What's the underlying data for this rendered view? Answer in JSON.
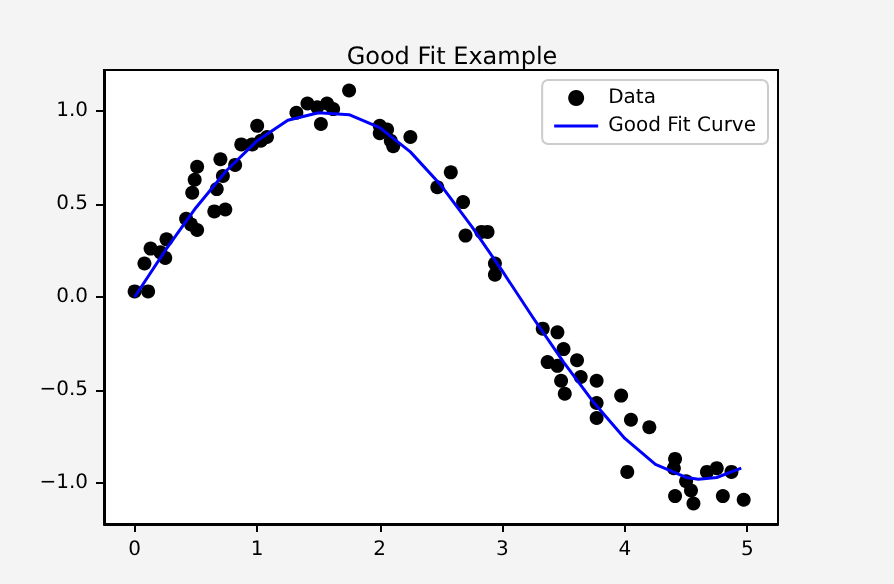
{
  "chart_data": {
    "type": "scatter",
    "title": "Good Fit Example",
    "xlim": [
      -0.25,
      5.25
    ],
    "xticks": [
      0,
      1,
      2,
      3,
      4,
      5
    ],
    "ylim": [
      -1.22,
      1.22
    ],
    "yticks": [
      {
        "value": -1,
        "label": "−1.0"
      },
      {
        "value": -0.5,
        "label": "−0.5"
      },
      {
        "value": 0,
        "label": "0.0"
      },
      {
        "value": 0.5,
        "label": "0.5"
      },
      {
        "value": 1,
        "label": "1.0"
      }
    ],
    "legend": "top right",
    "grid": false,
    "series": [
      {
        "name": "Data",
        "color": "#000000",
        "marker": "circle",
        "x": [
          0,
          0.08,
          0.11,
          0.13,
          0.21,
          0.25,
          0.26,
          0.42,
          0.46,
          0.47,
          0.49,
          0.51,
          0.51,
          0.65,
          0.67,
          0.7,
          0.72,
          0.74,
          0.82,
          0.87,
          0.96,
          1.0,
          1.03,
          1.08,
          1.32,
          1.41,
          1.49,
          1.52,
          1.57,
          1.62,
          1.75,
          2.0,
          2.0,
          2.06,
          2.09,
          2.11,
          2.25,
          2.47,
          2.58,
          2.68,
          2.7,
          2.83,
          2.88,
          2.94,
          2.94,
          3.33,
          3.37,
          3.45,
          3.45,
          3.48,
          3.5,
          3.51,
          3.61,
          3.64,
          3.77,
          3.77,
          3.77,
          3.97,
          4.02,
          4.05,
          4.2,
          4.4,
          4.41,
          4.41,
          4.5,
          4.54,
          4.56,
          4.67,
          4.75,
          4.8,
          4.87,
          4.97
        ],
        "values": [
          0.03,
          0.18,
          0.03,
          0.26,
          0.24,
          0.21,
          0.31,
          0.42,
          0.39,
          0.56,
          0.63,
          0.7,
          0.36,
          0.46,
          0.58,
          0.74,
          0.65,
          0.47,
          0.71,
          0.82,
          0.82,
          0.92,
          0.84,
          0.86,
          0.99,
          1.04,
          1.02,
          0.93,
          1.04,
          1.01,
          1.11,
          0.92,
          0.88,
          0.9,
          0.84,
          0.81,
          0.86,
          0.59,
          0.67,
          0.51,
          0.33,
          0.35,
          0.35,
          0.18,
          0.12,
          -0.17,
          -0.35,
          -0.19,
          -0.37,
          -0.45,
          -0.28,
          -0.52,
          -0.34,
          -0.43,
          -0.45,
          -0.57,
          -0.65,
          -0.53,
          -0.94,
          -0.66,
          -0.7,
          -0.92,
          -0.87,
          -1.07,
          -0.99,
          -1.04,
          -1.11,
          -0.94,
          -0.92,
          -1.07,
          -0.94,
          -1.09
        ]
      },
      {
        "name": "Good Fit Curve",
        "type": "line",
        "color": "#0000ff",
        "marker": "none",
        "line_style": "solid",
        "x": [
          0,
          0.25,
          0.5,
          0.75,
          1,
          1.25,
          1.5,
          1.75,
          2,
          2.25,
          2.5,
          2.75,
          3,
          3.25,
          3.5,
          3.75,
          4,
          4.25,
          4.5,
          4.6,
          4.75,
          4.95
        ],
        "values": [
          0,
          0.25,
          0.48,
          0.68,
          0.84,
          0.95,
          0.99,
          0.98,
          0.91,
          0.78,
          0.6,
          0.38,
          0.14,
          -0.11,
          -0.35,
          -0.57,
          -0.76,
          -0.9,
          -0.97,
          -0.98,
          -0.97,
          -0.92
        ]
      }
    ]
  }
}
